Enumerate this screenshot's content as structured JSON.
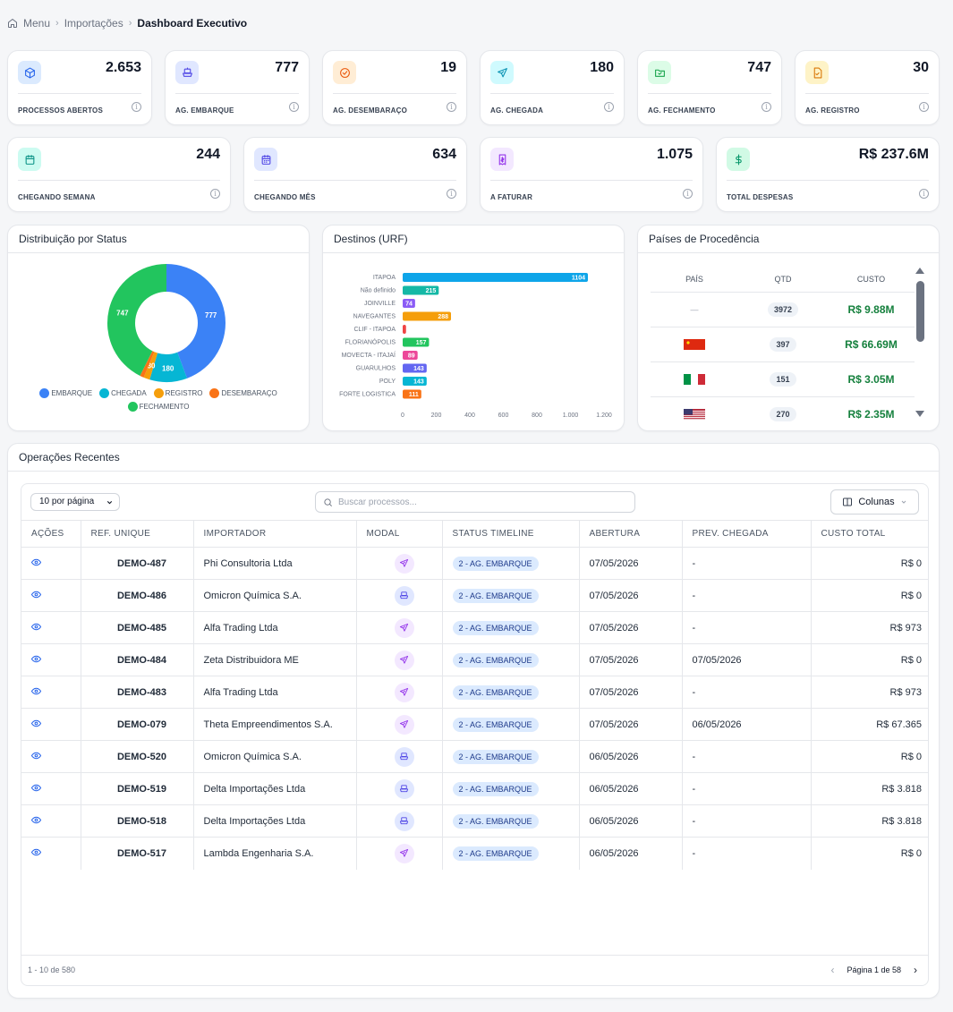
{
  "breadcrumb": {
    "menu": "Menu",
    "imports": "Importações",
    "current": "Dashboard Executivo"
  },
  "kpis_row1": [
    {
      "value": "2.653",
      "label": "PROCESSOS ABERTOS",
      "icon": "box-icon",
      "bg": "#dbeafe",
      "fg": "#2563eb"
    },
    {
      "value": "777",
      "label": "AG. EMBARQUE",
      "icon": "ship-icon",
      "bg": "#e0e7ff",
      "fg": "#4f46e5"
    },
    {
      "value": "19",
      "label": "AG. DESEMBARAÇO",
      "icon": "check-circle-icon",
      "bg": "#ffedd5",
      "fg": "#ea580c"
    },
    {
      "value": "180",
      "label": "AG. CHEGADA",
      "icon": "plane-icon",
      "bg": "#cffafe",
      "fg": "#0891b2"
    },
    {
      "value": "747",
      "label": "AG. FECHAMENTO",
      "icon": "folder-check-icon",
      "bg": "#dcfce7",
      "fg": "#16a34a"
    },
    {
      "value": "30",
      "label": "AG. REGISTRO",
      "icon": "file-check-icon",
      "bg": "#fef3c7",
      "fg": "#d97706"
    }
  ],
  "kpis_row2": [
    {
      "value": "244",
      "label": "CHEGANDO SEMANA",
      "icon": "calendar-icon",
      "bg": "#ccfbf1",
      "fg": "#0d9488"
    },
    {
      "value": "634",
      "label": "CHEGANDO MÊS",
      "icon": "calendar-days-icon",
      "bg": "#e0e7ff",
      "fg": "#4f46e5"
    },
    {
      "value": "1.075",
      "label": "A FATURAR",
      "icon": "receipt-icon",
      "bg": "#f3e8ff",
      "fg": "#9333ea"
    },
    {
      "value": "R$ 237.6M",
      "label": "TOTAL DESPESAS",
      "icon": "dollar-icon",
      "bg": "#d1fae5",
      "fg": "#059669"
    }
  ],
  "status_panel": {
    "title": "Distribuição por Status"
  },
  "chart_data": [
    {
      "type": "pie",
      "title": "Distribuição por Status",
      "labels": [
        "EMBARQUE",
        "CHEGADA",
        "REGISTRO",
        "DESEMBARAÇO",
        "FECHAMENTO"
      ],
      "values": [
        777,
        180,
        30,
        19,
        747
      ],
      "colors": [
        "#3b82f6",
        "#06b6d4",
        "#f59e0b",
        "#f97316",
        "#22c55e"
      ],
      "legend_position": "bottom",
      "donut": true
    },
    {
      "type": "bar",
      "orientation": "horizontal",
      "title": "Destinos (URF)",
      "categories": [
        "ITAPOA",
        "Não definido",
        "JOINVILLE",
        "NAVEGANTES",
        "CLIF - ITAPOA",
        "FLORIANÓPOLIS",
        "MOVECTA - ITAJAÍ",
        "GUARULHOS",
        "POLY",
        "FORTE LOGISTICA"
      ],
      "values": [
        1104,
        215,
        74,
        288,
        20,
        157,
        89,
        143,
        143,
        111
      ],
      "value_labels": [
        "1104",
        "215",
        "74",
        "288",
        "",
        "157",
        "89",
        "143",
        "143",
        "111"
      ],
      "colors": [
        "#0ea5e9",
        "#14b8a6",
        "#8b5cf6",
        "#f59e0b",
        "#ef4444",
        "#22c55e",
        "#ec4899",
        "#6366f1",
        "#06b6d4",
        "#f97316"
      ],
      "xlim": [
        0,
        1200
      ],
      "xticks": [
        "0",
        "200",
        "400",
        "600",
        "800",
        "1.000",
        "1.200"
      ],
      "grid": false
    }
  ],
  "dest_panel": {
    "title": "Destinos (URF)"
  },
  "countries_panel": {
    "title": "Países de Procedência",
    "headers": [
      "PAÍS",
      "QTD",
      "CUSTO"
    ],
    "rows": [
      {
        "flag": "none",
        "country": "—",
        "qty": "3972",
        "cost": "R$ 9.88M"
      },
      {
        "flag": "china-flag-icon",
        "country": "",
        "qty": "397",
        "cost": "R$ 66.69M"
      },
      {
        "flag": "italy-flag-icon",
        "country": "",
        "qty": "151",
        "cost": "R$ 3.05M"
      },
      {
        "flag": "usa-flag-icon",
        "country": "",
        "qty": "270",
        "cost": "R$ 2.35M"
      }
    ]
  },
  "ops": {
    "title": "Operações Recentes",
    "page_size": "10 por página",
    "search_placeholder": "Buscar processos...",
    "columns_button": "Colunas",
    "headers": [
      "AÇÕES",
      "REF. UNIQUE",
      "IMPORTADOR",
      "MODAL",
      "STATUS TIMELINE",
      "ABERTURA",
      "PREV. CHEGADA",
      "CUSTO TOTAL"
    ],
    "rows": [
      {
        "ref": "DEMO-487",
        "importer": "Phi Consultoria Ltda",
        "modal": "air",
        "status": "2 - AG. EMBARQUE",
        "opened": "07/05/2026",
        "eta": "-",
        "cost": "R$ 0"
      },
      {
        "ref": "DEMO-486",
        "importer": "Omicron Química S.A.",
        "modal": "sea",
        "status": "2 - AG. EMBARQUE",
        "opened": "07/05/2026",
        "eta": "-",
        "cost": "R$ 0"
      },
      {
        "ref": "DEMO-485",
        "importer": "Alfa Trading Ltda",
        "modal": "air",
        "status": "2 - AG. EMBARQUE",
        "opened": "07/05/2026",
        "eta": "-",
        "cost": "R$ 973"
      },
      {
        "ref": "DEMO-484",
        "importer": "Zeta Distribuidora ME",
        "modal": "air",
        "status": "2 - AG. EMBARQUE",
        "opened": "07/05/2026",
        "eta": "07/05/2026",
        "cost": "R$ 0"
      },
      {
        "ref": "DEMO-483",
        "importer": "Alfa Trading Ltda",
        "modal": "air",
        "status": "2 - AG. EMBARQUE",
        "opened": "07/05/2026",
        "eta": "-",
        "cost": "R$ 973"
      },
      {
        "ref": "DEMO-079",
        "importer": "Theta Empreendimentos S.A.",
        "modal": "air",
        "status": "2 - AG. EMBARQUE",
        "opened": "07/05/2026",
        "eta": "06/05/2026",
        "cost": "R$ 67.365"
      },
      {
        "ref": "DEMO-520",
        "importer": "Omicron Química S.A.",
        "modal": "sea",
        "status": "2 - AG. EMBARQUE",
        "opened": "06/05/2026",
        "eta": "-",
        "cost": "R$ 0"
      },
      {
        "ref": "DEMO-519",
        "importer": "Delta Importações Ltda",
        "modal": "sea",
        "status": "2 - AG. EMBARQUE",
        "opened": "06/05/2026",
        "eta": "-",
        "cost": "R$ 3.818"
      },
      {
        "ref": "DEMO-518",
        "importer": "Delta Importações Ltda",
        "modal": "sea",
        "status": "2 - AG. EMBARQUE",
        "opened": "06/05/2026",
        "eta": "-",
        "cost": "R$ 3.818"
      },
      {
        "ref": "DEMO-517",
        "importer": "Lambda Engenharia S.A.",
        "modal": "air",
        "status": "2 - AG. EMBARQUE",
        "opened": "06/05/2026",
        "eta": "-",
        "cost": "R$ 0"
      }
    ],
    "count_text": "1 - 10 de 580",
    "page_text": "Página 1 de 58"
  }
}
